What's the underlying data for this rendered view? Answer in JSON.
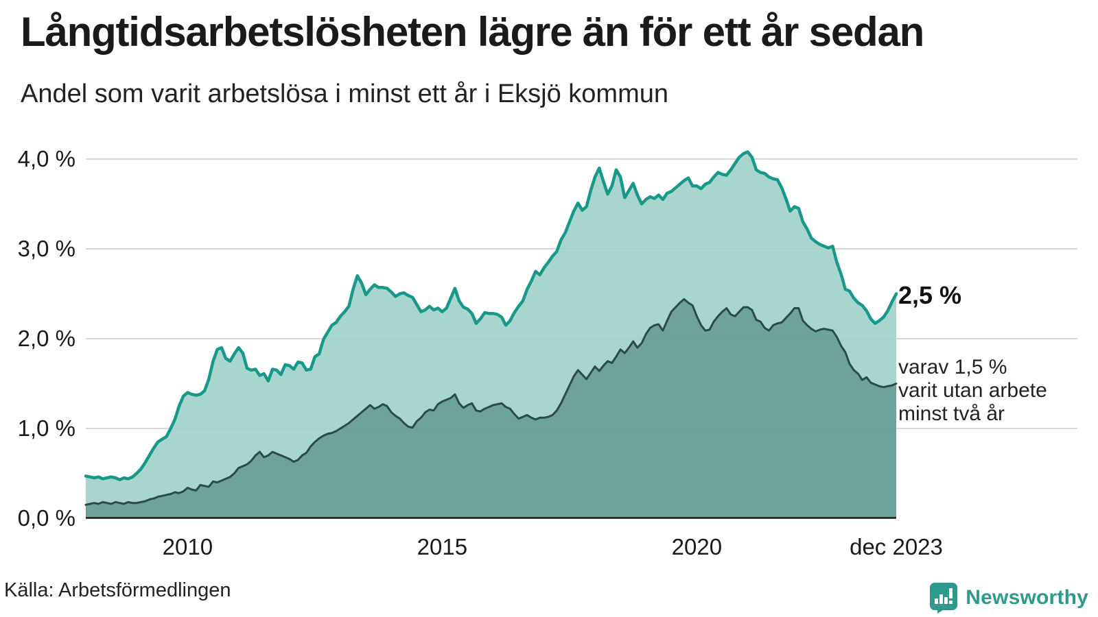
{
  "title": "Långtidsarbetslösheten lägre än för ett år sedan",
  "subtitle": "Andel som varit arbetslösa i minst ett år i Eksjö kommun",
  "source": "Källa: Arbetsförmedlingen",
  "branding": {
    "name": "Newsworthy",
    "icon": "newsworthy-speech-bubble-bar-chart-icon",
    "color": "#2e9a8e"
  },
  "annotations": {
    "latest_total_label": "2,5 %",
    "subset_label_lines": [
      "varav 1,5 %",
      "varit utan arbete",
      "minst två år"
    ]
  },
  "colors": {
    "total_line": "#17998a",
    "total_fill": "#9ccfc7",
    "subset_line": "#2c4a47",
    "subset_fill": "#659b95",
    "gridline": "#d8d8dc",
    "axis_line": "#1a1a1a",
    "text": "#1a1a1a"
  },
  "chart_data": {
    "type": "area",
    "title": "Långtidsarbetslösheten lägre än för ett år sedan",
    "subtitle": "Andel som varit arbetslösa i minst ett år i Eksjö kommun",
    "unit": "%",
    "x_start": "jan 2008",
    "x_end": "dec 2023",
    "points_per_year": 12,
    "ylim": [
      0,
      4.3
    ],
    "grid": true,
    "y_ticks": [
      {
        "label": "0,0 %",
        "value": 0
      },
      {
        "label": "1,0 %",
        "value": 1
      },
      {
        "label": "2,0 %",
        "value": 2
      },
      {
        "label": "3,0 %",
        "value": 3
      },
      {
        "label": "4,0 %",
        "value": 4
      }
    ],
    "x_ticks": [
      {
        "label": "2010",
        "month_index": 24
      },
      {
        "label": "2015",
        "month_index": 84
      },
      {
        "label": "2020",
        "month_index": 144
      },
      {
        "label": "dec 2023",
        "month_index": 191
      }
    ],
    "series": [
      {
        "name": "Andel som varit arbetslösa i minst ett år",
        "latest_value": 2.5,
        "values": [
          0.47,
          0.46,
          0.45,
          0.46,
          0.44,
          0.45,
          0.46,
          0.45,
          0.43,
          0.45,
          0.44,
          0.46,
          0.5,
          0.55,
          0.62,
          0.7,
          0.78,
          0.85,
          0.88,
          0.91,
          1.0,
          1.1,
          1.25,
          1.36,
          1.4,
          1.38,
          1.37,
          1.38,
          1.42,
          1.55,
          1.75,
          1.88,
          1.9,
          1.78,
          1.75,
          1.83,
          1.9,
          1.84,
          1.67,
          1.65,
          1.66,
          1.59,
          1.61,
          1.53,
          1.66,
          1.65,
          1.6,
          1.71,
          1.7,
          1.66,
          1.74,
          1.73,
          1.65,
          1.66,
          1.8,
          1.83,
          1.99,
          2.07,
          2.15,
          2.18,
          2.25,
          2.3,
          2.36,
          2.55,
          2.7,
          2.62,
          2.49,
          2.55,
          2.6,
          2.57,
          2.57,
          2.56,
          2.52,
          2.47,
          2.5,
          2.51,
          2.48,
          2.46,
          2.38,
          2.3,
          2.32,
          2.36,
          2.32,
          2.34,
          2.3,
          2.34,
          2.45,
          2.56,
          2.42,
          2.35,
          2.33,
          2.28,
          2.17,
          2.22,
          2.29,
          2.28,
          2.28,
          2.27,
          2.24,
          2.15,
          2.2,
          2.29,
          2.36,
          2.42,
          2.55,
          2.64,
          2.75,
          2.71,
          2.79,
          2.85,
          2.92,
          2.97,
          3.1,
          3.18,
          3.3,
          3.42,
          3.51,
          3.43,
          3.47,
          3.65,
          3.8,
          3.9,
          3.75,
          3.61,
          3.7,
          3.88,
          3.8,
          3.57,
          3.65,
          3.73,
          3.6,
          3.5,
          3.55,
          3.58,
          3.56,
          3.6,
          3.55,
          3.62,
          3.64,
          3.68,
          3.72,
          3.76,
          3.79,
          3.7,
          3.7,
          3.67,
          3.72,
          3.74,
          3.8,
          3.85,
          3.83,
          3.82,
          3.88,
          3.95,
          4.02,
          4.06,
          4.08,
          4.02,
          3.88,
          3.85,
          3.84,
          3.8,
          3.78,
          3.77,
          3.68,
          3.56,
          3.42,
          3.47,
          3.45,
          3.3,
          3.22,
          3.12,
          3.08,
          3.05,
          3.03,
          3.01,
          3.03,
          2.85,
          2.72,
          2.55,
          2.53,
          2.45,
          2.4,
          2.37,
          2.31,
          2.22,
          2.17,
          2.2,
          2.24,
          2.31,
          2.41,
          2.5
        ]
      },
      {
        "name": "varav utan arbete minst två år",
        "latest_value": 1.5,
        "values": [
          0.15,
          0.16,
          0.17,
          0.16,
          0.18,
          0.17,
          0.16,
          0.18,
          0.17,
          0.16,
          0.18,
          0.17,
          0.17,
          0.18,
          0.19,
          0.21,
          0.22,
          0.24,
          0.25,
          0.26,
          0.27,
          0.29,
          0.28,
          0.3,
          0.34,
          0.32,
          0.31,
          0.37,
          0.36,
          0.35,
          0.41,
          0.4,
          0.42,
          0.44,
          0.46,
          0.5,
          0.56,
          0.58,
          0.6,
          0.64,
          0.7,
          0.74,
          0.68,
          0.7,
          0.74,
          0.72,
          0.7,
          0.68,
          0.66,
          0.63,
          0.65,
          0.7,
          0.73,
          0.8,
          0.85,
          0.89,
          0.92,
          0.94,
          0.95,
          0.97,
          1.0,
          1.03,
          1.06,
          1.1,
          1.14,
          1.18,
          1.22,
          1.26,
          1.22,
          1.24,
          1.27,
          1.25,
          1.18,
          1.14,
          1.11,
          1.06,
          1.02,
          1.01,
          1.08,
          1.12,
          1.18,
          1.21,
          1.2,
          1.27,
          1.3,
          1.32,
          1.34,
          1.38,
          1.28,
          1.23,
          1.26,
          1.28,
          1.2,
          1.19,
          1.22,
          1.24,
          1.26,
          1.27,
          1.28,
          1.24,
          1.22,
          1.16,
          1.11,
          1.13,
          1.15,
          1.12,
          1.1,
          1.12,
          1.12,
          1.13,
          1.15,
          1.2,
          1.28,
          1.38,
          1.48,
          1.58,
          1.65,
          1.6,
          1.55,
          1.62,
          1.69,
          1.64,
          1.7,
          1.75,
          1.73,
          1.8,
          1.88,
          1.84,
          1.9,
          1.97,
          1.9,
          1.95,
          2.05,
          2.12,
          2.15,
          2.16,
          2.09,
          2.2,
          2.3,
          2.35,
          2.4,
          2.44,
          2.4,
          2.37,
          2.25,
          2.15,
          2.09,
          2.1,
          2.19,
          2.25,
          2.3,
          2.34,
          2.27,
          2.25,
          2.3,
          2.35,
          2.35,
          2.32,
          2.21,
          2.19,
          2.12,
          2.09,
          2.15,
          2.17,
          2.18,
          2.23,
          2.28,
          2.34,
          2.34,
          2.2,
          2.15,
          2.11,
          2.08,
          2.1,
          2.11,
          2.1,
          2.09,
          2.02,
          1.92,
          1.85,
          1.72,
          1.65,
          1.61,
          1.54,
          1.57,
          1.51,
          1.49,
          1.47,
          1.46,
          1.47,
          1.48,
          1.5
        ]
      }
    ]
  }
}
